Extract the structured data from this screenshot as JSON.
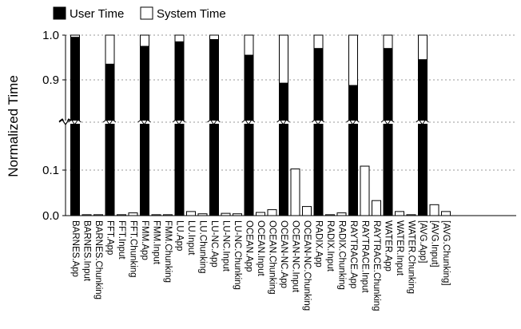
{
  "chart_data": {
    "type": "bar",
    "stacked": true,
    "ylabel": "Normalized Time",
    "y_axis": {
      "broken": true,
      "lower_segment": [
        0.0,
        0.1
      ],
      "upper_segment": [
        0.9,
        1.0
      ],
      "tick_labels": [
        "0.0",
        "0.1",
        "0.9",
        "1.0"
      ]
    },
    "grid": "horizontal dotted",
    "legend": {
      "placement": "top-left",
      "entries": [
        {
          "label": "User Time",
          "color": "#000000"
        },
        {
          "label": "System Time",
          "color": "#ffffff"
        }
      ]
    },
    "categories": [
      "BARNES.App",
      "BARNES.Input",
      "BARNES.Chunking",
      "FFT.App",
      "FFT.Input",
      "FFT.Chunking",
      "FMM.App",
      "FMM.Input",
      "FMM.Chunking",
      "LU.App",
      "LU.Input",
      "LU.Chunking",
      "LU-NC.App",
      "LU-NC.Input",
      "LU-NC.Chunking",
      "OCEAN.App",
      "OCEAN.Input",
      "OCEAN.Chunking",
      "OCEAN-NC.App",
      "OCEAN-NC.Input",
      "OCEAN-NC.Chunking",
      "RADIX.App",
      "RADIX.Input",
      "RADIX.Chunking",
      "RAYTRACE.App",
      "RAYTRACE.Input",
      "RAYTRACE.Chunking",
      "WATER.App",
      "WATER.Input",
      "WATER.Chunking",
      "[AVG.App]",
      "[AVG.Input]",
      "[AVG.Chunking]"
    ],
    "series": [
      {
        "name": "User Time",
        "color": "#000000",
        "values": [
          0.995,
          0.0,
          0.0,
          0.935,
          0.0,
          0.0,
          0.975,
          0.0,
          0.0,
          0.985,
          0.0,
          0.0,
          0.99,
          0.0,
          0.0,
          0.955,
          0.0,
          0.0,
          0.87,
          0.0,
          0.0,
          0.97,
          0.0,
          0.0,
          0.85,
          0.0,
          0.0,
          0.97,
          0.0,
          0.0,
          0.945,
          0.0,
          0.0
        ]
      },
      {
        "name": "System Time",
        "color": "#ffffff",
        "values": [
          0.005,
          0.002,
          0.002,
          0.065,
          0.002,
          0.006,
          0.025,
          0.002,
          0.002,
          0.015,
          0.009,
          0.004,
          0.01,
          0.005,
          0.004,
          0.045,
          0.007,
          0.013,
          0.13,
          0.11,
          0.02,
          0.03,
          0.002,
          0.006,
          0.15,
          0.135,
          0.033,
          0.03,
          0.009,
          0.002,
          0.055,
          0.024,
          0.009
        ]
      }
    ]
  }
}
